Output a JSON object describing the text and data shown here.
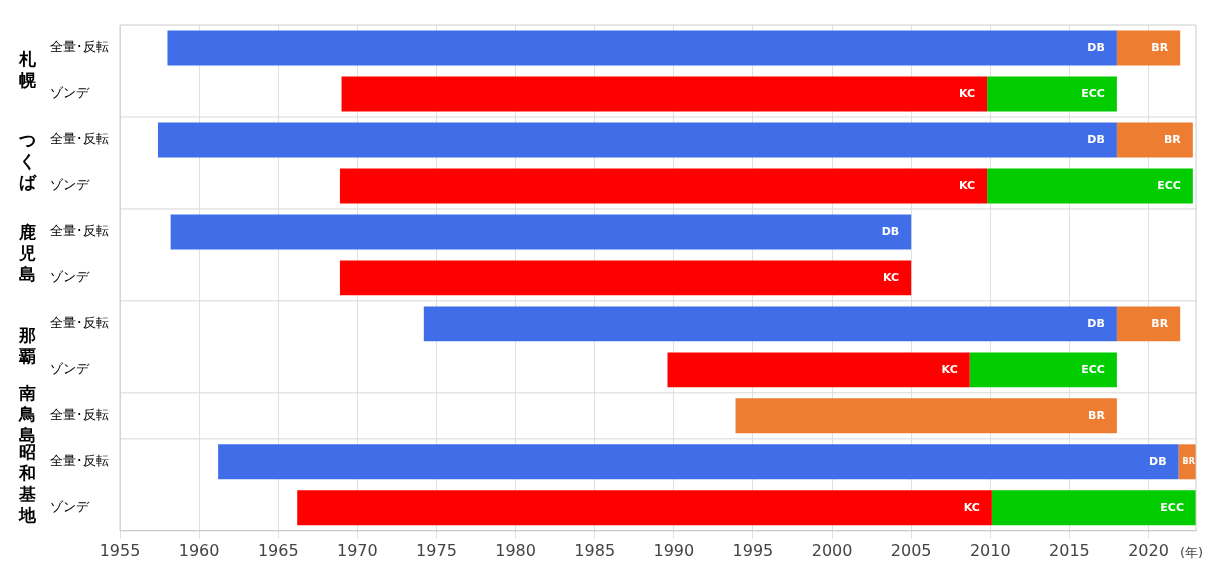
{
  "chart_data": {
    "type": "bar",
    "orientation": "horizontal",
    "xlabel": "(年)",
    "categories": [
      "全量･反転",
      "ゾンデ",
      "全量･反転",
      "ゾンデ",
      "全量･反転",
      "ゾンデ",
      "全量･反転",
      "ゾンデ",
      "全量･反転",
      "全量･反転",
      "ゾンデ"
    ],
    "annotations": [
      "札幌",
      "つくば",
      "鹿児島",
      "那覇",
      "南鳥島",
      "昭和基地"
    ],
    "series": [
      {
        "name": "DB",
        "color": "#3f6ee8",
        "base": [
          1958,
          null,
          1957.4,
          null,
          1958.2,
          null,
          1974.2,
          null,
          null,
          1961.2,
          null
        ],
        "values": [
          60,
          null,
          60.6,
          null,
          46.8,
          null,
          43.8,
          null,
          null,
          60.7,
          null
        ]
      },
      {
        "name": "BR",
        "color": "#ed7d31",
        "base": [
          2018,
          null,
          2018,
          null,
          null,
          null,
          2018,
          null,
          1993.9,
          2021.9,
          null
        ],
        "values": [
          4,
          null,
          4.8,
          null,
          null,
          null,
          4,
          null,
          24.1,
          1.1,
          null
        ]
      },
      {
        "name": "KC",
        "color": "#ff0000",
        "base": [
          null,
          1969,
          null,
          1968.9,
          null,
          1968.9,
          null,
          1989.6,
          null,
          null,
          1966.2
        ],
        "values": [
          null,
          40.8,
          null,
          40.9,
          null,
          36.1,
          null,
          19.1,
          null,
          null,
          43.9
        ]
      },
      {
        "name": "ECC",
        "color": "#00cc00",
        "base": [
          null,
          2009.8,
          null,
          2009.8,
          null,
          null,
          null,
          2008.7,
          null,
          null,
          2010.1
        ],
        "values": [
          null,
          8.2,
          null,
          13,
          null,
          null,
          null,
          9.3,
          null,
          null,
          12.9
        ]
      }
    ],
    "xlim": [
      1955,
      2023
    ],
    "xticks": [
      1955,
      1960,
      1965,
      1970,
      1975,
      1980,
      1985,
      1990,
      1995,
      2000,
      2005,
      2010,
      2015,
      2020
    ],
    "grid": "x",
    "legend": false
  }
}
